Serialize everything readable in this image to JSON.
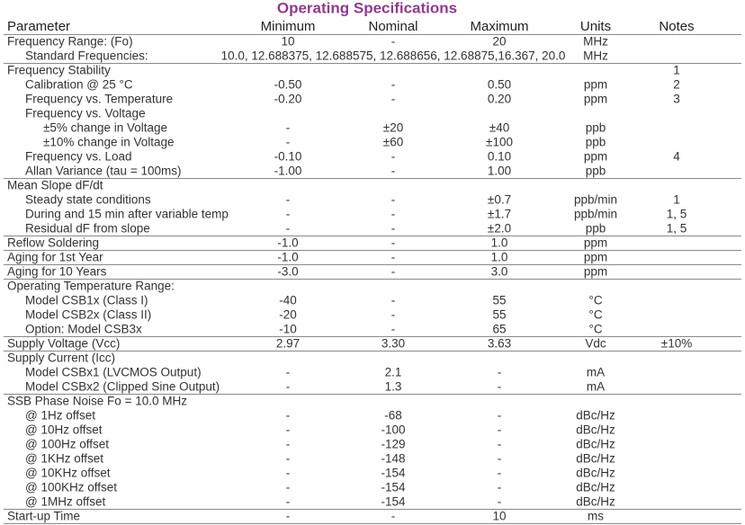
{
  "title": "Operating Specifications",
  "table": {
    "header": [
      "Parameter",
      "Minimum",
      "Nominal",
      "Maximum",
      "Units",
      "Notes"
    ],
    "sections": [
      {
        "row": [
          "Frequency Range: (Fo)",
          "10",
          "-",
          "20",
          "MHz",
          null
        ],
        "items": [
          {
            "row": [
              "Standard Frequencies:",
              null,
              "10.0, 12.688375, 12.688575, 12.688656, 12.68875,16.367, 20.0",
              null,
              "MHz",
              null
            ]
          }
        ]
      },
      {
        "row": [
          "Frequency Stability",
          null,
          null,
          null,
          null,
          "1"
        ],
        "items": [
          {
            "row": [
              "Calibration @ 25 °C",
              "-0.50",
              "-",
              "0.50",
              "ppm",
              "2"
            ]
          },
          {
            "row": [
              "Frequency vs. Temperature",
              "-0.20",
              "-",
              "0.20",
              "ppm",
              "3"
            ]
          },
          {
            "row": [
              "Frequency vs. Voltage",
              null,
              null,
              null,
              null,
              null
            ],
            "items": [
              {
                "row": [
                  "±5% change in Voltage",
                  "-",
                  "±20",
                  "±40",
                  "ppb",
                  null
                ]
              },
              {
                "row": [
                  "±10% change in Voltage",
                  "-",
                  "±60",
                  "±100",
                  "ppb",
                  null
                ]
              }
            ]
          },
          {
            "row": [
              "Frequency vs. Load",
              "-0.10",
              "-",
              "0.10",
              "ppm",
              "4"
            ]
          },
          {
            "row": [
              "Allan Variance (tau = 100ms)",
              "-1.00",
              "-",
              "1.00",
              "ppb",
              null
            ]
          }
        ]
      },
      {
        "row": [
          "Mean Slope dF/dt",
          null,
          null,
          null,
          null,
          null
        ],
        "items": [
          {
            "row": [
              "Steady state conditions",
              "-",
              "-",
              "±0.7",
              "ppb/min",
              "1"
            ]
          },
          {
            "row": [
              "During and 15 min after variable temp",
              "-",
              "-",
              "±1.7",
              "ppb/min",
              "1, 5"
            ]
          },
          {
            "row": [
              "Residual dF from slope",
              "-",
              "-",
              "±2.0",
              "ppb",
              "1, 5"
            ]
          }
        ]
      },
      {
        "row": [
          "Reflow Soldering",
          "-1.0",
          "-",
          "1.0",
          "ppm",
          null
        ]
      },
      {
        "row": [
          "Aging for 1st Year",
          "-1.0",
          "-",
          "1.0",
          "ppm",
          null
        ]
      },
      {
        "row": [
          "Aging for 10 Years",
          "-3.0",
          "-",
          "3.0",
          "ppm",
          null
        ]
      },
      {
        "row": [
          "Operating Temperature Range:",
          null,
          null,
          null,
          null,
          null
        ],
        "items": [
          {
            "row": [
              "Model CSB1x (Class I)",
              "-40",
              "-",
              "55",
              "°C",
              null
            ]
          },
          {
            "row": [
              "Model CSB2x (Class II)",
              "-20",
              "-",
              "55",
              "°C",
              null
            ]
          },
          {
            "row": [
              "Option: Model CSB3x",
              "-10",
              "-",
              "65",
              "°C",
              null
            ]
          }
        ]
      },
      {
        "row": [
          "Supply Voltage (Vcc)",
          "2.97",
          "3.30",
          "3.63",
          "Vdc",
          "±10%"
        ]
      },
      {
        "row": [
          "Supply Current (Icc)",
          null,
          null,
          null,
          null,
          null
        ],
        "items": [
          {
            "row": [
              "Model CSBx1 (LVCMOS Output)",
              "-",
              "2.1",
              "-",
              "mA",
              null
            ]
          },
          {
            "row": [
              "Model CSBx2 (Clipped Sine Output)",
              "-",
              "1.3",
              "-",
              "mA",
              null
            ]
          }
        ]
      },
      {
        "row": [
          "SSB Phase Noise Fo = 10.0 MHz",
          null,
          null,
          null,
          null,
          null
        ],
        "items": [
          {
            "row": [
              "@ 1Hz offset",
              "-",
              "-68",
              "-",
              "dBc/Hz",
              null
            ]
          },
          {
            "row": [
              "@ 10Hz offset",
              "-",
              "-100",
              "-",
              "dBc/Hz",
              null
            ]
          },
          {
            "row": [
              "@ 100Hz offset",
              "-",
              "-129",
              "-",
              "dBc/Hz",
              null
            ]
          },
          {
            "row": [
              "@ 1KHz offset",
              "-",
              "-148",
              "-",
              "dBc/Hz",
              null
            ]
          },
          {
            "row": [
              "@ 10KHz offset",
              "-",
              "-154",
              "-",
              "dBc/Hz",
              null
            ]
          },
          {
            "row": [
              "@ 100KHz offset",
              "-",
              "-154",
              "-",
              "dBc/Hz",
              null
            ]
          },
          {
            "row": [
              "@ 1MHz offset",
              "-",
              "-154",
              "-",
              "dBc/Hz",
              null
            ]
          }
        ]
      },
      {
        "row": [
          "Start-up Time",
          "-",
          "-",
          "10",
          "ms",
          null
        ]
      }
    ]
  }
}
